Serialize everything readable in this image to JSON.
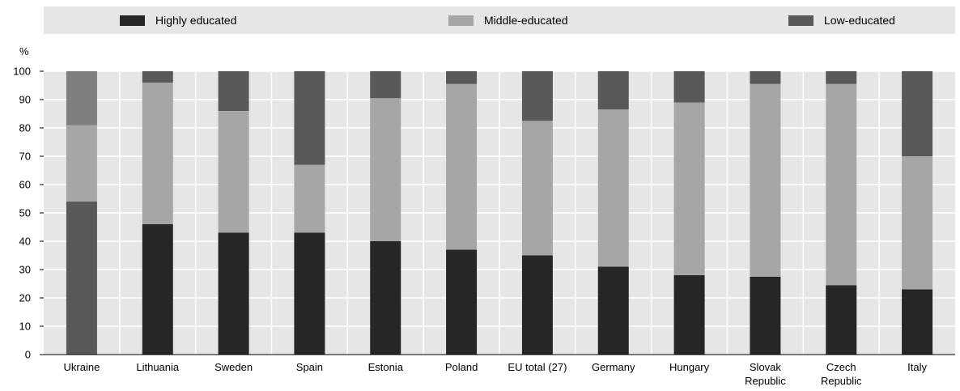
{
  "chart_data": {
    "type": "bar",
    "stacked": true,
    "ylabel": "%",
    "ylim": [
      0,
      100
    ],
    "yticks": [
      0,
      10,
      20,
      30,
      40,
      50,
      60,
      70,
      80,
      90,
      100
    ],
    "grid": true,
    "legend_position": "top",
    "categories": [
      [
        "Ukraine"
      ],
      [
        "Lithuania"
      ],
      [
        "Sweden"
      ],
      [
        "Spain"
      ],
      [
        "Estonia"
      ],
      [
        "Poland"
      ],
      [
        "EU total (27)"
      ],
      [
        "Germany"
      ],
      [
        "Hungary"
      ],
      [
        "Slovak",
        "Republic"
      ],
      [
        "Czech",
        "Republic"
      ],
      [
        "Italy"
      ]
    ],
    "series": [
      {
        "name": "Highly educated",
        "color": "#262626",
        "values": [
          null,
          46,
          43,
          43,
          40,
          37,
          35,
          31,
          28,
          27.5,
          24.5,
          23
        ]
      },
      {
        "name": "Middle-educated",
        "color": "#a6a6a6",
        "values": [
          27,
          50,
          43,
          24,
          50.5,
          58.5,
          47.5,
          55.5,
          61,
          68,
          71,
          47
        ]
      },
      {
        "name": "Low-educated",
        "color": "#595959",
        "values": [
          73,
          4,
          14,
          33,
          9.5,
          4.5,
          17.5,
          13.5,
          11,
          4.5,
          4.5,
          30
        ]
      }
    ],
    "notes": "Ukraine: lower segment (0-54) drawn in the dark-grey Low-educated colour; middle 54-81; top 81-100 drawn in a mid-grey."
  },
  "colors": {
    "legend_band": "#e6e6e6",
    "plot_background": "#e6e6e6",
    "gridline": "#ffffff",
    "ukraine_top": "#7f7f7f"
  }
}
